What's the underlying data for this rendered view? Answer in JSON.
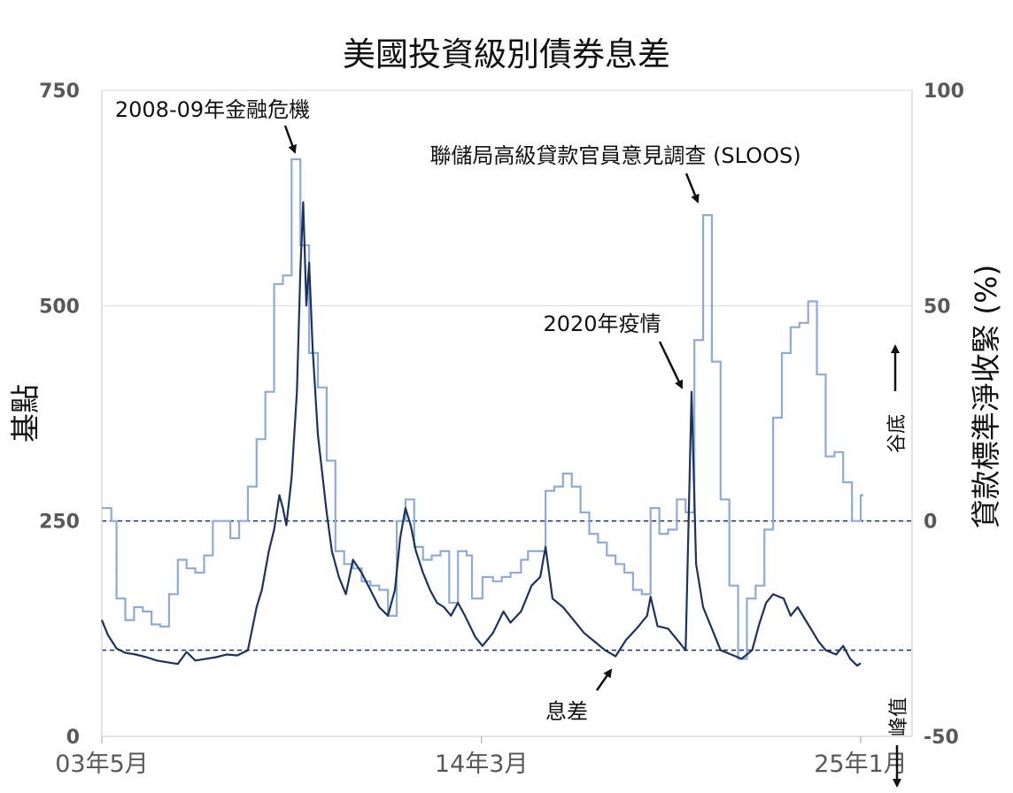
{
  "chart_data": {
    "type": "line",
    "title": "美國投資級別債券息差",
    "ylabel_left": "基點",
    "ylabel_right": "貸款標準淨收緊 (%)",
    "x_ticks": [
      "03年5月",
      "14年3月",
      "25年1月"
    ],
    "y_left_ticks": [
      "0",
      "250",
      "500",
      "750"
    ],
    "y_right_ticks": [
      "-50",
      "0",
      "50",
      "100"
    ],
    "ylim_left": [
      0,
      750
    ],
    "ylim_right": [
      -50,
      100
    ],
    "xlim": [
      2003.33,
      2025.0
    ],
    "grid": true,
    "reference_lines": [
      {
        "axis": "left",
        "value": 100
      },
      {
        "axis": "right",
        "value": 0
      }
    ],
    "series": [
      {
        "name": "息差",
        "axis": "left",
        "color": "#1b3360",
        "points": [
          [
            2003.33,
            135
          ],
          [
            2003.5,
            118
          ],
          [
            2003.75,
            102
          ],
          [
            2004.0,
            97
          ],
          [
            2004.3,
            95
          ],
          [
            2004.6,
            92
          ],
          [
            2004.9,
            88
          ],
          [
            2005.2,
            86
          ],
          [
            2005.5,
            84
          ],
          [
            2005.75,
            98
          ],
          [
            2006.0,
            88
          ],
          [
            2006.3,
            90
          ],
          [
            2006.6,
            92
          ],
          [
            2006.9,
            95
          ],
          [
            2007.2,
            94
          ],
          [
            2007.5,
            100
          ],
          [
            2007.6,
            120
          ],
          [
            2007.75,
            150
          ],
          [
            2007.9,
            170
          ],
          [
            2008.1,
            215
          ],
          [
            2008.25,
            240
          ],
          [
            2008.4,
            280
          ],
          [
            2008.5,
            265
          ],
          [
            2008.6,
            245
          ],
          [
            2008.75,
            300
          ],
          [
            2008.9,
            400
          ],
          [
            2009.0,
            540
          ],
          [
            2009.08,
            620
          ],
          [
            2009.17,
            500
          ],
          [
            2009.25,
            550
          ],
          [
            2009.35,
            450
          ],
          [
            2009.5,
            350
          ],
          [
            2009.75,
            260
          ],
          [
            2009.9,
            215
          ],
          [
            2010.1,
            185
          ],
          [
            2010.3,
            165
          ],
          [
            2010.5,
            205
          ],
          [
            2010.75,
            190
          ],
          [
            2011.0,
            170
          ],
          [
            2011.25,
            150
          ],
          [
            2011.5,
            140
          ],
          [
            2011.7,
            170
          ],
          [
            2011.85,
            230
          ],
          [
            2012.0,
            265
          ],
          [
            2012.15,
            245
          ],
          [
            2012.3,
            215
          ],
          [
            2012.5,
            190
          ],
          [
            2012.7,
            170
          ],
          [
            2012.9,
            155
          ],
          [
            2013.1,
            150
          ],
          [
            2013.3,
            140
          ],
          [
            2013.5,
            155
          ],
          [
            2013.7,
            140
          ],
          [
            2014.0,
            115
          ],
          [
            2014.2,
            105
          ],
          [
            2014.5,
            120
          ],
          [
            2014.8,
            145
          ],
          [
            2015.0,
            132
          ],
          [
            2015.3,
            145
          ],
          [
            2015.6,
            175
          ],
          [
            2015.85,
            185
          ],
          [
            2016.0,
            220
          ],
          [
            2016.2,
            160
          ],
          [
            2016.5,
            150
          ],
          [
            2016.8,
            135
          ],
          [
            2017.1,
            120
          ],
          [
            2017.4,
            110
          ],
          [
            2017.7,
            100
          ],
          [
            2018.0,
            93
          ],
          [
            2018.3,
            112
          ],
          [
            2018.6,
            125
          ],
          [
            2018.9,
            140
          ],
          [
            2019.0,
            162
          ],
          [
            2019.2,
            128
          ],
          [
            2019.5,
            125
          ],
          [
            2019.8,
            110
          ],
          [
            2020.0,
            100
          ],
          [
            2020.17,
            400
          ],
          [
            2020.3,
            200
          ],
          [
            2020.5,
            150
          ],
          [
            2020.8,
            120
          ],
          [
            2021.0,
            100
          ],
          [
            2021.3,
            95
          ],
          [
            2021.6,
            90
          ],
          [
            2021.9,
            100
          ],
          [
            2022.1,
            130
          ],
          [
            2022.3,
            155
          ],
          [
            2022.5,
            165
          ],
          [
            2022.8,
            160
          ],
          [
            2023.0,
            140
          ],
          [
            2023.2,
            150
          ],
          [
            2023.5,
            130
          ],
          [
            2023.8,
            110
          ],
          [
            2024.0,
            100
          ],
          [
            2024.3,
            95
          ],
          [
            2024.5,
            105
          ],
          [
            2024.7,
            90
          ],
          [
            2024.9,
            82
          ],
          [
            2025.0,
            85
          ]
        ]
      },
      {
        "name": "SLOOS",
        "axis": "right",
        "color": "#8eaad9",
        "steps": [
          [
            2003.33,
            3
          ],
          [
            2003.6,
            0
          ],
          [
            2003.75,
            -18
          ],
          [
            2004.0,
            -23
          ],
          [
            2004.25,
            -20
          ],
          [
            2004.5,
            -21
          ],
          [
            2004.75,
            -24
          ],
          [
            2005.0,
            -24.5
          ],
          [
            2005.25,
            -17
          ],
          [
            2005.5,
            -9
          ],
          [
            2005.75,
            -11
          ],
          [
            2006.0,
            -12
          ],
          [
            2006.25,
            -8
          ],
          [
            2006.5,
            0
          ],
          [
            2006.75,
            0
          ],
          [
            2007.0,
            -4
          ],
          [
            2007.25,
            0
          ],
          [
            2007.5,
            8
          ],
          [
            2007.75,
            19
          ],
          [
            2008.0,
            30
          ],
          [
            2008.25,
            55
          ],
          [
            2008.5,
            57
          ],
          [
            2008.75,
            84
          ],
          [
            2009.0,
            64
          ],
          [
            2009.25,
            39
          ],
          [
            2009.5,
            31
          ],
          [
            2009.75,
            14
          ],
          [
            2010.0,
            -7
          ],
          [
            2010.25,
            -10
          ],
          [
            2010.5,
            -11
          ],
          [
            2010.75,
            -14
          ],
          [
            2011.0,
            -15
          ],
          [
            2011.25,
            -16
          ],
          [
            2011.5,
            -22
          ],
          [
            2011.75,
            0
          ],
          [
            2012.0,
            5
          ],
          [
            2012.25,
            -6
          ],
          [
            2012.5,
            -9
          ],
          [
            2012.75,
            -8
          ],
          [
            2013.0,
            -7
          ],
          [
            2013.25,
            -19
          ],
          [
            2013.5,
            -7
          ],
          [
            2013.75,
            -8
          ],
          [
            2013.9,
            -18
          ],
          [
            2014.2,
            -13
          ],
          [
            2014.5,
            -14
          ],
          [
            2014.75,
            -13
          ],
          [
            2015.0,
            -12
          ],
          [
            2015.3,
            -9
          ],
          [
            2015.5,
            -7
          ],
          [
            2015.75,
            -7
          ],
          [
            2016.0,
            7
          ],
          [
            2016.25,
            8
          ],
          [
            2016.5,
            11
          ],
          [
            2016.75,
            8
          ],
          [
            2017.0,
            2
          ],
          [
            2017.25,
            -3
          ],
          [
            2017.5,
            -5
          ],
          [
            2017.75,
            -8
          ],
          [
            2018.0,
            -10
          ],
          [
            2018.25,
            -12
          ],
          [
            2018.5,
            -16
          ],
          [
            2018.75,
            -17
          ],
          [
            2019.0,
            3
          ],
          [
            2019.25,
            -3
          ],
          [
            2019.5,
            -2
          ],
          [
            2019.75,
            5
          ],
          [
            2020.0,
            2
          ],
          [
            2020.25,
            42
          ],
          [
            2020.5,
            71
          ],
          [
            2020.75,
            37
          ],
          [
            2021.0,
            5
          ],
          [
            2021.25,
            -15
          ],
          [
            2021.5,
            -32
          ],
          [
            2021.75,
            -18
          ],
          [
            2022.0,
            -15
          ],
          [
            2022.25,
            -2
          ],
          [
            2022.5,
            24
          ],
          [
            2022.75,
            39
          ],
          [
            2023.0,
            45
          ],
          [
            2023.25,
            46
          ],
          [
            2023.5,
            51
          ],
          [
            2023.75,
            34
          ],
          [
            2024.0,
            15
          ],
          [
            2024.25,
            16
          ],
          [
            2024.5,
            9
          ],
          [
            2024.75,
            0
          ],
          [
            2025.0,
            6
          ]
        ]
      }
    ],
    "annotations": [
      {
        "text": "2008-09年金融危機"
      },
      {
        "text": "聯儲局高級貸款官員意見調查 (SLOOS)"
      },
      {
        "text": "2020年疫情"
      },
      {
        "text": "息差"
      }
    ],
    "side_labels": {
      "up": "谷底",
      "down": "峰值"
    }
  }
}
